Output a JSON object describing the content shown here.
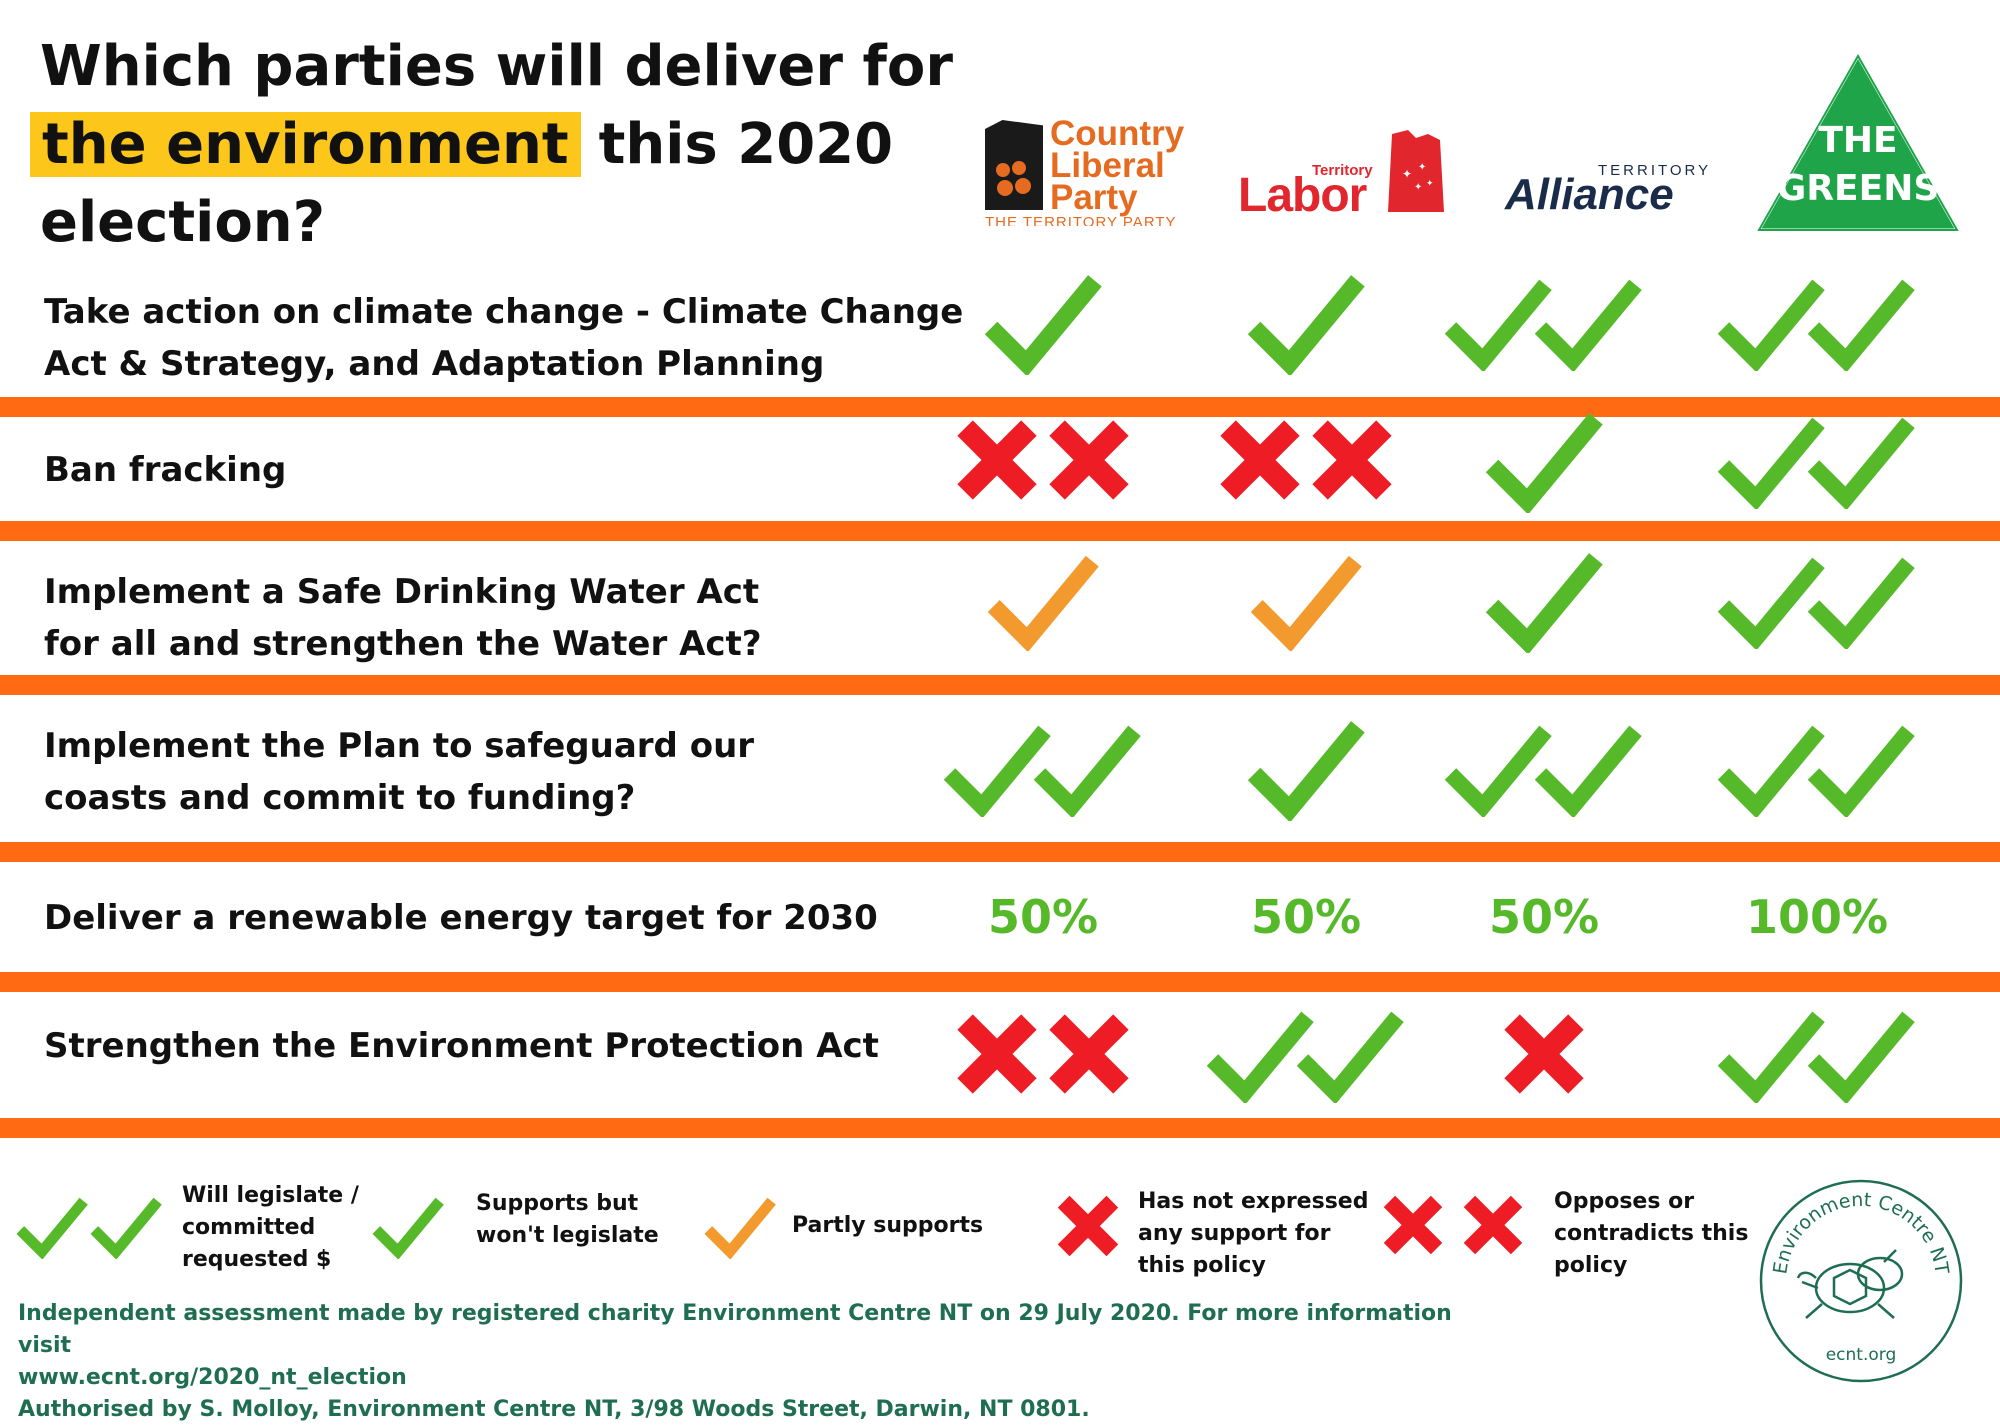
{
  "title": {
    "line1": "Which parties will deliver for",
    "highlight": "the environment",
    "line2_rest": "this 2020",
    "line3": "election?"
  },
  "parties": {
    "clp": {
      "name_lines": [
        "Country",
        "Liberal",
        "Party"
      ],
      "sub": "THE TERRITORY PARTY",
      "color": "#e46b1f"
    },
    "labor": {
      "small": "Territory",
      "big": "Labor",
      "color": "#e1262d"
    },
    "alliance": {
      "small": "TERRITORY",
      "big": "Alliance",
      "color": "#1b2b4a"
    },
    "greens": {
      "line1": "THE",
      "line2": "GREENS",
      "color": "#1fa44a"
    }
  },
  "rows": [
    {
      "label_lines": [
        "Take action on climate change - Climate Change",
        "Act & Strategy, and Adaptation Planning"
      ],
      "marks": [
        "check",
        "check",
        "double-check",
        "double-check"
      ]
    },
    {
      "label_lines": [
        "Ban fracking"
      ],
      "marks": [
        "double-cross",
        "double-cross",
        "check",
        "double-check"
      ]
    },
    {
      "label_lines": [
        "Implement a Safe Drinking Water Act",
        "for all and strengthen the Water Act?"
      ],
      "marks": [
        "partial",
        "partial",
        "check",
        "double-check"
      ]
    },
    {
      "label_lines": [
        "Implement the Plan to safeguard our",
        "coasts and commit to funding?"
      ],
      "marks": [
        "double-check",
        "check",
        "double-check",
        "double-check"
      ]
    },
    {
      "label_lines": [
        "Deliver a renewable energy target for 2030"
      ],
      "values": [
        "50%",
        "50%",
        "50%",
        "100%"
      ]
    },
    {
      "label_lines": [
        "Strengthen the Environment Protection Act"
      ],
      "marks": [
        "double-cross",
        "double-check",
        "cross",
        "double-check"
      ]
    }
  ],
  "legend": [
    {
      "icon": "double-check",
      "lines": [
        "Will legislate /",
        "committed",
        "requested $"
      ]
    },
    {
      "icon": "check",
      "lines": [
        "Supports but",
        "won't legislate"
      ]
    },
    {
      "icon": "partial",
      "lines": [
        "Partly supports"
      ]
    },
    {
      "icon": "cross",
      "lines": [
        "Has not expressed",
        "any support for",
        "this policy"
      ]
    },
    {
      "icon": "double-cross",
      "lines": [
        "Opposes or",
        "contradicts this",
        "policy"
      ]
    }
  ],
  "footer": {
    "line1": "Independent assessment made by registered charity Environment Centre NT on 29 July 2020. For more information visit",
    "line2": "www.ecnt.org/2020_nt_election",
    "line3": "Authorised by S. Molloy, Environment Centre NT, 3/98 Woods Street, Darwin, NT 0801."
  },
  "ecnt_logo": {
    "ring_text": "Environment Centre NT",
    "url": "ecnt.org",
    "color": "#1f6e51"
  },
  "colors": {
    "check": "#56b92a",
    "partial": "#f29a2e",
    "cross": "#ee1c25",
    "divider": "#ff6a13",
    "highlight": "#fcc61a"
  }
}
